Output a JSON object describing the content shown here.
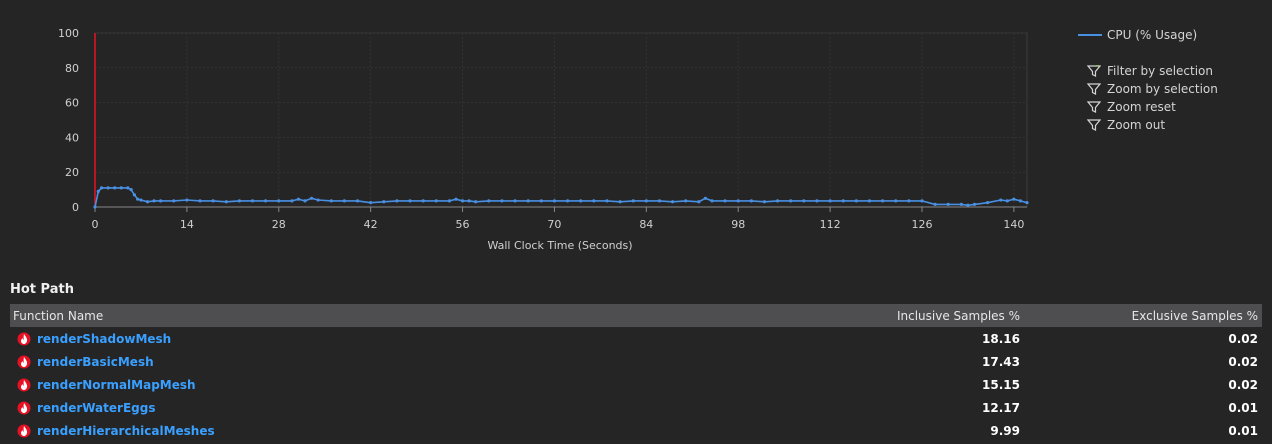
{
  "chart_data": {
    "type": "line",
    "xlabel": "Wall Clock Time (Seconds)",
    "ylabel": "",
    "xlim": [
      0,
      142
    ],
    "ylim": [
      0,
      100
    ],
    "x_ticks": [
      0,
      14,
      28,
      42,
      56,
      70,
      84,
      98,
      112,
      126,
      140
    ],
    "y_ticks": [
      0,
      20,
      40,
      60,
      80,
      100
    ],
    "grid": true,
    "legend_position": "top-right",
    "marker_x": 0,
    "series": [
      {
        "name": "CPU (% Usage)",
        "color": "#4a90e2",
        "x": [
          0,
          0.5,
          1,
          2,
          3,
          4,
          5,
          5.5,
          6,
          6.5,
          7,
          8,
          9,
          10,
          12,
          14,
          16,
          18,
          20,
          22,
          24,
          26,
          28,
          30,
          31,
          32,
          33,
          34,
          36,
          38,
          40,
          42,
          44,
          46,
          48,
          50,
          52,
          54,
          55,
          56,
          57,
          58,
          60,
          62,
          64,
          66,
          68,
          70,
          72,
          74,
          76,
          78,
          80,
          82,
          84,
          86,
          88,
          90,
          92,
          93,
          94,
          96,
          98,
          100,
          102,
          104,
          106,
          108,
          110,
          112,
          114,
          116,
          118,
          120,
          122,
          124,
          126,
          128,
          130,
          132,
          133,
          134,
          136,
          138,
          139,
          140,
          141,
          142
        ],
        "y": [
          0,
          9,
          11,
          11,
          11,
          11,
          11,
          10,
          7,
          4.5,
          4,
          3,
          3.5,
          3.5,
          3.5,
          4,
          3.5,
          3.5,
          3,
          3.5,
          3.5,
          3.5,
          3.5,
          3.5,
          4.5,
          3.5,
          5,
          4,
          3.5,
          3.5,
          3.5,
          2.5,
          3,
          3.5,
          3.5,
          3.5,
          3.5,
          3.5,
          4.5,
          3.5,
          3.5,
          3,
          3.5,
          3.5,
          3.5,
          3.5,
          3.5,
          3.5,
          3.5,
          3.5,
          3.5,
          3.5,
          3,
          3.5,
          3.5,
          3.5,
          3,
          3.5,
          3,
          5,
          3.5,
          3.5,
          3.5,
          3.5,
          3,
          3.5,
          3.5,
          3.5,
          3.5,
          3.5,
          3.5,
          3.5,
          3.5,
          3.5,
          3.5,
          3.5,
          3.5,
          1.5,
          1.5,
          1.5,
          1,
          1.5,
          2.5,
          4,
          3.5,
          4.5,
          3.5,
          2.5
        ]
      }
    ]
  },
  "legend": {
    "series_label": "CPU (% Usage)"
  },
  "actions": [
    {
      "label": "Filter by selection",
      "icon": "filter-icon"
    },
    {
      "label": "Zoom by selection",
      "icon": "filter-icon"
    },
    {
      "label": "Zoom reset",
      "icon": "filter-icon"
    },
    {
      "label": "Zoom out",
      "icon": "filter-icon"
    }
  ],
  "hot_path": {
    "title": "Hot Path",
    "columns": {
      "name": "Function Name",
      "inclusive": "Inclusive Samples %",
      "exclusive": "Exclusive Samples %"
    },
    "rows": [
      {
        "name": "renderShadowMesh",
        "inclusive": "18.16",
        "exclusive": "0.02"
      },
      {
        "name": "renderBasicMesh",
        "inclusive": "17.43",
        "exclusive": "0.02"
      },
      {
        "name": "renderNormalMapMesh",
        "inclusive": "15.15",
        "exclusive": "0.02"
      },
      {
        "name": "renderWaterEggs",
        "inclusive": "12.17",
        "exclusive": "0.01"
      },
      {
        "name": "renderHierarchicalMeshes",
        "inclusive": "9.99",
        "exclusive": "0.01"
      }
    ],
    "row_icon": "hot-path-flame-icon",
    "colors": {
      "link": "#3aa0ff",
      "header_bg": "#4e4e50"
    }
  }
}
